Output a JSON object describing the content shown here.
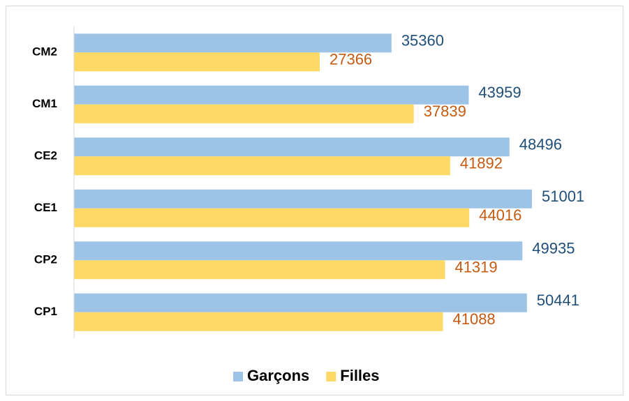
{
  "chart_data": {
    "type": "bar",
    "orientation": "horizontal",
    "categories": [
      "CM2",
      "CM1",
      "CE2",
      "CE1",
      "CP2",
      "CP1"
    ],
    "series": [
      {
        "name": "Garçons",
        "color": "#9dc3e6",
        "label_color": "#1f4e79",
        "values": [
          35360,
          43959,
          48496,
          51001,
          49935,
          50441
        ]
      },
      {
        "name": "Filles",
        "color": "#ffd966",
        "label_color": "#c55a11",
        "values": [
          27366,
          37839,
          41892,
          44016,
          41319,
          41088
        ]
      }
    ],
    "legend": "bottom"
  }
}
